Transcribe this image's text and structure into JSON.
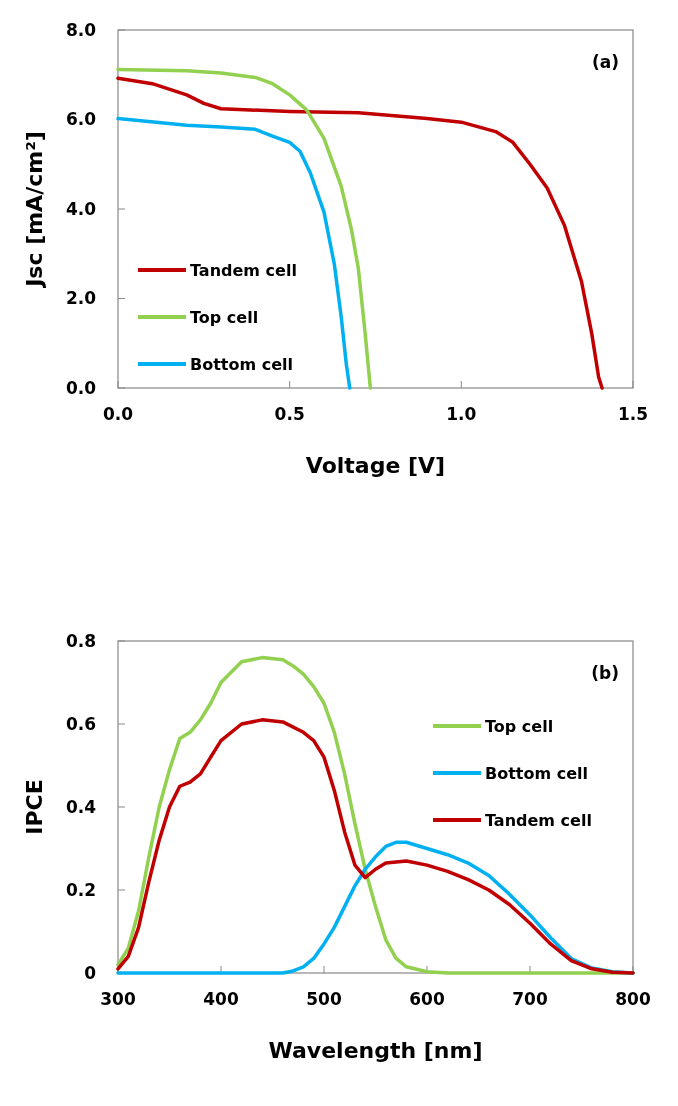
{
  "chart_data": [
    {
      "type": "line",
      "xlabel": "Voltage [V]",
      "ylabel": "Jsc [mA/cm²]",
      "annotations": [
        "(a)"
      ],
      "xlim": [
        0,
        1.5
      ],
      "xticks": [
        {
          "value": 0,
          "label": "0.0"
        },
        {
          "value": 0.5,
          "label": "0.5"
        },
        {
          "value": 1,
          "label": "1.0"
        },
        {
          "value": 1.5,
          "label": "1.5"
        }
      ],
      "ylim": [
        0,
        8
      ],
      "yticks": [
        {
          "value": 0,
          "label": "0.0"
        },
        {
          "value": 2,
          "label": "2.0"
        },
        {
          "value": 4,
          "label": "4.0"
        },
        {
          "value": 6,
          "label": "6.0"
        },
        {
          "value": 8,
          "label": "8.0"
        }
      ],
      "grid": false,
      "legend": "bottom left",
      "marker": "none",
      "line_style": "solid",
      "series": [
        {
          "name": "Tandem cell",
          "color": "#c00000",
          "x": [
            0,
            0.1,
            0.2,
            0.25,
            0.3,
            0.5,
            0.7,
            0.9,
            1.0,
            1.1,
            1.15,
            1.2,
            1.25,
            1.3,
            1.35,
            1.38,
            1.4,
            1.41
          ],
          "values": [
            6.92,
            6.8,
            6.55,
            6.36,
            6.24,
            6.18,
            6.15,
            6.02,
            5.94,
            5.73,
            5.49,
            5.0,
            4.47,
            3.64,
            2.38,
            1.21,
            0.24,
            0
          ]
        },
        {
          "name": "Top cell",
          "color": "#92d050",
          "x": [
            0,
            0.2,
            0.3,
            0.4,
            0.45,
            0.5,
            0.55,
            0.6,
            0.65,
            0.68,
            0.7,
            0.72,
            0.735
          ],
          "values": [
            7.12,
            7.09,
            7.04,
            6.94,
            6.8,
            6.55,
            6.21,
            5.58,
            4.51,
            3.54,
            2.67,
            1.21,
            0
          ]
        },
        {
          "name": "Bottom cell",
          "color": "#00b0f0",
          "x": [
            0,
            0.2,
            0.3,
            0.4,
            0.45,
            0.5,
            0.53,
            0.56,
            0.6,
            0.63,
            0.65,
            0.665,
            0.675
          ],
          "values": [
            6.02,
            5.87,
            5.83,
            5.78,
            5.63,
            5.49,
            5.29,
            4.81,
            3.93,
            2.77,
            1.6,
            0.53,
            0
          ]
        }
      ]
    },
    {
      "type": "line",
      "xlabel": "Wavelength [nm]",
      "ylabel": "IPCE",
      "annotations": [
        "(b)"
      ],
      "xlim": [
        300,
        800
      ],
      "xticks": [
        300,
        400,
        500,
        600,
        700,
        800
      ],
      "ylim": [
        0,
        0.8
      ],
      "yticks": [
        0,
        0.2,
        0.4,
        0.6,
        0.8
      ],
      "grid": false,
      "legend": "right",
      "marker": "none",
      "line_style": "solid",
      "series": [
        {
          "name": "Top cell",
          "color": "#92d050",
          "x": [
            300,
            310,
            320,
            330,
            340,
            350,
            360,
            370,
            380,
            390,
            400,
            420,
            440,
            460,
            470,
            480,
            490,
            500,
            510,
            520,
            530,
            540,
            550,
            560,
            570,
            580,
            600,
            620,
            800
          ],
          "values": [
            0.02,
            0.06,
            0.15,
            0.28,
            0.4,
            0.49,
            0.565,
            0.58,
            0.61,
            0.65,
            0.7,
            0.75,
            0.76,
            0.755,
            0.74,
            0.72,
            0.69,
            0.65,
            0.58,
            0.48,
            0.36,
            0.25,
            0.16,
            0.08,
            0.035,
            0.015,
            0.003,
            0,
            0
          ]
        },
        {
          "name": "Bottom cell",
          "color": "#00b0f0",
          "x": [
            300,
            460,
            470,
            480,
            490,
            500,
            510,
            520,
            530,
            540,
            550,
            560,
            570,
            580,
            600,
            620,
            640,
            660,
            680,
            700,
            720,
            740,
            760,
            780,
            800
          ],
          "values": [
            0,
            0,
            0.005,
            0.015,
            0.035,
            0.07,
            0.11,
            0.16,
            0.21,
            0.25,
            0.28,
            0.305,
            0.315,
            0.315,
            0.3,
            0.285,
            0.265,
            0.235,
            0.19,
            0.14,
            0.085,
            0.035,
            0.012,
            0.003,
            0
          ]
        },
        {
          "name": "Tandem cell",
          "color": "#c00000",
          "x": [
            300,
            310,
            320,
            330,
            340,
            350,
            360,
            370,
            380,
            390,
            400,
            420,
            440,
            460,
            480,
            490,
            500,
            510,
            520,
            530,
            540,
            550,
            560,
            580,
            600,
            620,
            640,
            660,
            680,
            700,
            720,
            740,
            760,
            780,
            800
          ],
          "values": [
            0.01,
            0.04,
            0.11,
            0.22,
            0.32,
            0.4,
            0.45,
            0.46,
            0.48,
            0.52,
            0.56,
            0.6,
            0.61,
            0.605,
            0.58,
            0.56,
            0.52,
            0.44,
            0.34,
            0.26,
            0.23,
            0.25,
            0.265,
            0.27,
            0.26,
            0.245,
            0.225,
            0.2,
            0.165,
            0.12,
            0.07,
            0.03,
            0.01,
            0.002,
            0
          ]
        }
      ]
    }
  ]
}
